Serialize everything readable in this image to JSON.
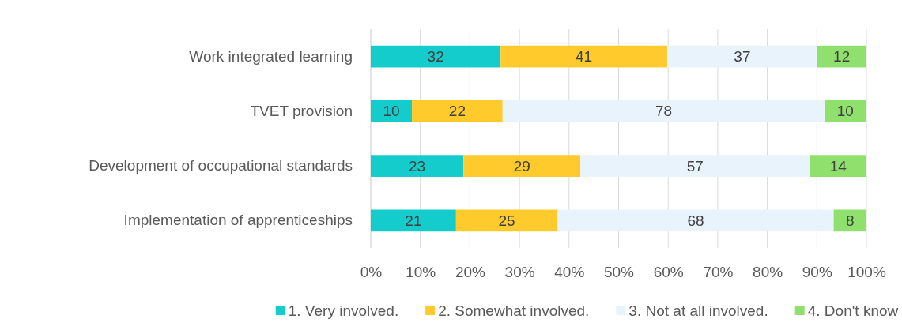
{
  "chart_data": {
    "type": "bar",
    "orientation": "horizontal",
    "stacked": true,
    "categories": [
      "Work integrated learning",
      "TVET provision",
      "Development of occupational standards",
      "Implementation of apprenticeships"
    ],
    "series": [
      {
        "name": "1. Very involved.",
        "color": "#14cccc",
        "values": [
          26.2,
          8.3,
          18.7,
          17.2
        ]
      },
      {
        "name": "2. Somewhat involved.",
        "color": "#ffca2c",
        "values": [
          33.6,
          18.3,
          23.6,
          20.5
        ]
      },
      {
        "name": "3. Not at all involved.",
        "color": "#e9f3fc",
        "values": [
          30.3,
          65.0,
          46.3,
          55.7
        ]
      },
      {
        "name": "4. Don't know",
        "color": "#8fe06c",
        "values": [
          9.8,
          8.3,
          11.4,
          6.6
        ]
      }
    ],
    "annotations": [
      "32",
      "41",
      "37",
      "12",
      "10",
      "22",
      "78",
      "10",
      "23",
      "29",
      "57",
      "14",
      "21",
      "25",
      "68",
      "8"
    ],
    "xlim": [
      0,
      100
    ],
    "xticks": [
      {
        "value": 0,
        "label": "0%"
      },
      {
        "value": 10,
        "label": "10%"
      },
      {
        "value": 20,
        "label": "20%"
      },
      {
        "value": 30,
        "label": "30%"
      },
      {
        "value": 40,
        "label": "40%"
      },
      {
        "value": 50,
        "label": "50%"
      },
      {
        "value": 60,
        "label": "60%"
      },
      {
        "value": 70,
        "label": "70%"
      },
      {
        "value": 80,
        "label": "80%"
      },
      {
        "value": 90,
        "label": "90%"
      },
      {
        "value": 100,
        "label": "100%"
      }
    ],
    "grid": "x",
    "legend": "bottom"
  }
}
